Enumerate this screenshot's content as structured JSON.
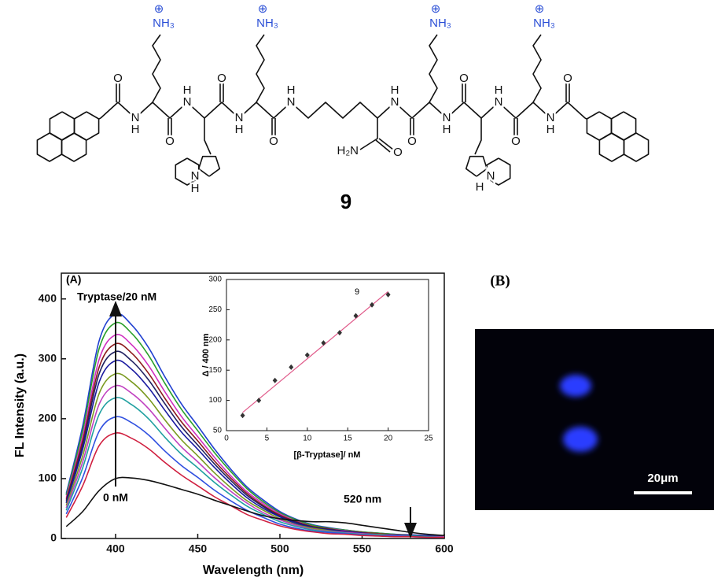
{
  "structure": {
    "compound_number": "9",
    "ammonium": [
      "NH₃",
      "NH₃",
      "NH₃",
      "NH₃"
    ],
    "charges": [
      "⊕",
      "⊕",
      "⊕",
      "⊕"
    ],
    "oxygens": [
      "O",
      "O",
      "O",
      "O",
      "O",
      "O",
      "O",
      "O",
      "O"
    ],
    "nitrogens": [
      "N",
      "N",
      "N",
      "N",
      "N",
      "N",
      "N",
      "N",
      "N",
      "N"
    ],
    "hydrogens": [
      "H",
      "H",
      "H",
      "H",
      "H",
      "H",
      "H",
      "H",
      "H",
      "H"
    ],
    "carboxamide_nh2": "H₂N"
  },
  "chart_data": [
    {
      "type": "line",
      "panel": "(A)",
      "x_label": "Wavelength (nm)",
      "y_label": "FL Intensity (a.u.)",
      "annotations": {
        "top": "Tryptase/20 nM",
        "bottom": "0 nM",
        "marker": "520 nm"
      },
      "xlim": [
        367,
        600
      ],
      "xticks": [
        400,
        450,
        500,
        550,
        600
      ],
      "ylim": [
        0,
        443
      ],
      "yticks": [
        0,
        100,
        200,
        300,
        400
      ],
      "x": [
        370,
        380,
        390,
        400,
        410,
        420,
        430,
        440,
        450,
        460,
        470,
        480,
        490,
        500,
        510,
        520,
        530,
        540,
        550,
        560,
        570,
        580,
        590,
        600
      ],
      "series": [
        {
          "color": "#1f3fd0",
          "values": [
            75,
            188,
            330,
            375,
            356,
            319,
            270,
            225,
            188,
            150,
            116,
            86,
            64,
            45,
            32,
            23,
            18,
            14,
            11,
            9,
            7,
            6,
            5,
            4
          ]
        },
        {
          "color": "#2aa02a",
          "values": [
            72,
            180,
            317,
            360,
            342,
            306,
            259,
            216,
            180,
            144,
            112,
            83,
            61,
            43,
            31,
            22,
            17,
            14,
            11,
            9,
            7,
            5,
            4,
            4
          ]
        },
        {
          "color": "#d030c0",
          "values": [
            68,
            170,
            299,
            340,
            323,
            289,
            245,
            204,
            170,
            136,
            105,
            78,
            58,
            41,
            29,
            20,
            16,
            13,
            10,
            8,
            6,
            5,
            4,
            3
          ]
        },
        {
          "color": "#8b1a1a",
          "values": [
            65,
            163,
            286,
            325,
            309,
            276,
            234,
            195,
            163,
            130,
            101,
            75,
            55,
            39,
            28,
            20,
            16,
            12,
            10,
            8,
            6,
            5,
            4,
            3
          ]
        },
        {
          "color": "#202060",
          "values": [
            62,
            156,
            275,
            312,
            296,
            265,
            225,
            187,
            156,
            125,
            97,
            72,
            53,
            37,
            27,
            19,
            15,
            12,
            9,
            7,
            6,
            5,
            4,
            3
          ]
        },
        {
          "color": "#1a1aa0",
          "values": [
            59,
            149,
            261,
            297,
            282,
            252,
            214,
            178,
            149,
            119,
            92,
            68,
            50,
            36,
            25,
            18,
            14,
            11,
            9,
            7,
            6,
            4,
            4,
            3
          ]
        },
        {
          "color": "#7a9a20",
          "values": [
            55,
            138,
            242,
            275,
            261,
            234,
            198,
            165,
            138,
            110,
            85,
            63,
            47,
            33,
            23,
            17,
            13,
            10,
            8,
            7,
            5,
            4,
            3,
            3
          ]
        },
        {
          "color": "#c040c0",
          "values": [
            51,
            128,
            224,
            255,
            242,
            217,
            184,
            153,
            128,
            102,
            79,
            59,
            43,
            31,
            22,
            15,
            12,
            10,
            8,
            6,
            5,
            4,
            3,
            3
          ]
        },
        {
          "color": "#20a0a0",
          "values": [
            47,
            118,
            207,
            235,
            223,
            200,
            169,
            141,
            118,
            94,
            73,
            54,
            40,
            28,
            20,
            14,
            11,
            9,
            7,
            6,
            4,
            4,
            3,
            2
          ]
        },
        {
          "color": "#3050e0",
          "values": [
            41,
            102,
            179,
            203,
            193,
            173,
            146,
            122,
            102,
            81,
            63,
            47,
            35,
            24,
            17,
            12,
            10,
            8,
            6,
            5,
            4,
            3,
            2,
            2
          ]
        },
        {
          "color": "#d02040",
          "values": [
            35,
            88,
            155,
            176,
            167,
            150,
            127,
            106,
            88,
            70,
            55,
            40,
            30,
            21,
            15,
            11,
            8,
            7,
            5,
            4,
            3,
            3,
            2,
            2
          ]
        },
        {
          "color": "#111111",
          "values": [
            20,
            45,
            80,
            100,
            101,
            97,
            90,
            82,
            74,
            64,
            55,
            46,
            38,
            33,
            30,
            28,
            28,
            26,
            22,
            18,
            14,
            10,
            7,
            5
          ]
        }
      ]
    },
    {
      "type": "scatter",
      "annotation": "9",
      "x_label": "[β-Tryptase]/ nM",
      "y_label": "Δ / 400 nm",
      "xlim": [
        0,
        25
      ],
      "xticks": [
        0,
        5,
        10,
        15,
        20,
        25
      ],
      "ylim": [
        50,
        300
      ],
      "yticks": [
        50,
        100,
        150,
        200,
        250,
        300
      ],
      "x": [
        2,
        4,
        6,
        8,
        10,
        12,
        14,
        16,
        18,
        20
      ],
      "values": [
        75,
        100,
        133,
        155,
        175,
        195,
        212,
        240,
        258,
        275
      ],
      "color": "#333333",
      "fit_line": {
        "x": [
          2,
          20
        ],
        "values": [
          80,
          280
        ],
        "color": "#e05a8a"
      }
    }
  ],
  "panel_b": {
    "label": "(B)",
    "scale_bar": "20μm"
  }
}
